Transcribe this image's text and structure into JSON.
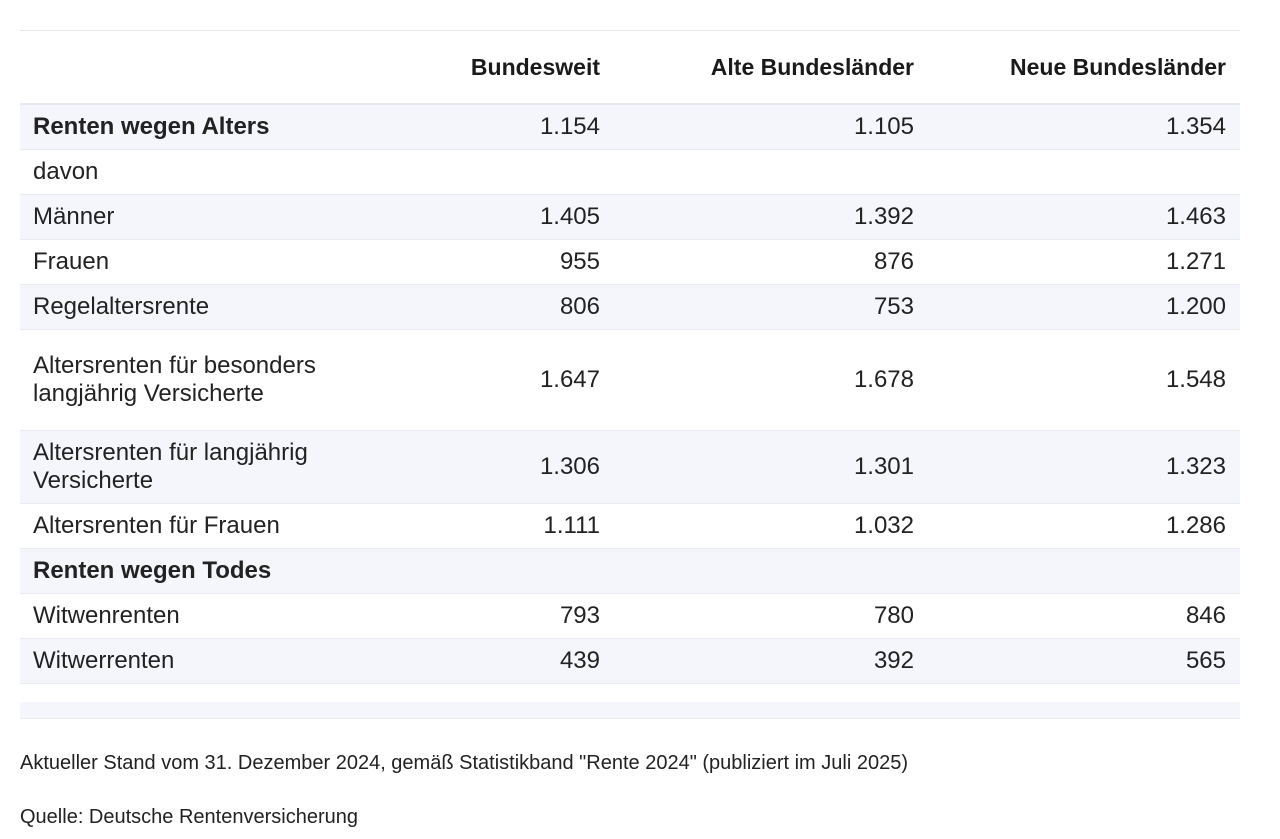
{
  "table": {
    "headers": [
      "",
      "Bundesweit",
      "Alte Bundesländer",
      "Neue Bundesländer"
    ],
    "rows": [
      {
        "label": "Renten wegen Alters",
        "bundesweit": "1.154",
        "alte": "1.105",
        "neue": "1.354"
      },
      {
        "label": "davon",
        "bundesweit": "",
        "alte": "",
        "neue": ""
      },
      {
        "label": "Männer",
        "bundesweit": "1.405",
        "alte": "1.392",
        "neue": "1.463"
      },
      {
        "label": "Frauen",
        "bundesweit": "955",
        "alte": "876",
        "neue": "1.271"
      },
      {
        "label": "Regelaltersrente",
        "bundesweit": "806",
        "alte": "753",
        "neue": "1.200"
      },
      {
        "label": "Altersrenten für besonders langjährig Versicherte",
        "bundesweit": "1.647",
        "alte": "1.678",
        "neue": "1.548"
      },
      {
        "label": "Altersrenten für langjährig Versicherte",
        "bundesweit": "1.306",
        "alte": "1.301",
        "neue": "1.323"
      },
      {
        "label": "Altersrenten für Frauen",
        "bundesweit": "1.111",
        "alte": "1.032",
        "neue": "1.286"
      },
      {
        "label": "Renten wegen Todes",
        "bundesweit": "",
        "alte": "",
        "neue": ""
      },
      {
        "label": "Witwenrenten",
        "bundesweit": "793",
        "alte": "780",
        "neue": "846"
      },
      {
        "label": "Witwerrenten",
        "bundesweit": "439",
        "alte": "392",
        "neue": "565"
      }
    ]
  },
  "footer": {
    "note": "Aktueller Stand vom 31. Dezember 2024, gemäß Statistikband \"Rente 2024\" (publiziert im Juli 2025)",
    "source": "Quelle: Deutsche Rentenversicherung"
  }
}
